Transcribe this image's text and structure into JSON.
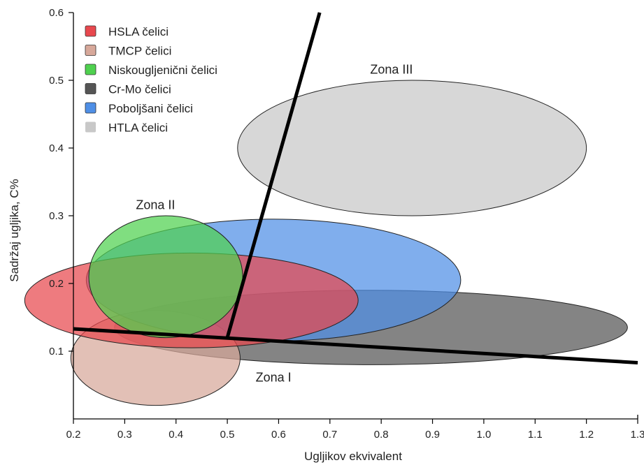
{
  "chart_data": {
    "type": "scatter",
    "title": "",
    "xlabel": "Ugljikov ekvivalent",
    "ylabel": "Sadržaj ugljika, C%",
    "xlim": [
      0.2,
      1.3
    ],
    "ylim": [
      0.0,
      0.6
    ],
    "x_ticks": [
      "0.2",
      "0.3",
      "0.4",
      "0.5",
      "0.6",
      "0.7",
      "0.8",
      "0.9",
      "1.0",
      "1.1",
      "1.2",
      "1.3"
    ],
    "y_ticks": [
      "0.1",
      "0.2",
      "0.3",
      "0.4",
      "0.5",
      "0.6"
    ],
    "grid": false,
    "legend_position": "top-left",
    "series": [
      {
        "name": "HTLA čelici",
        "color": "#c8c8c8",
        "center": [
          0.86,
          0.4
        ],
        "semi_axis_x": 0.34,
        "semi_axis_y": 0.1
      },
      {
        "name": "Cr-Mo čelici",
        "color": "#555555",
        "center": [
          0.78,
          0.135
        ],
        "semi_axis_x": 0.5,
        "semi_axis_y": 0.055
      },
      {
        "name": "TMCP čelici",
        "color": "#d7a89a",
        "center": [
          0.36,
          0.09
        ],
        "semi_axis_x": 0.165,
        "semi_axis_y": 0.07
      },
      {
        "name": "Poboljšani čelici",
        "color": "#4f8fe6",
        "center": [
          0.59,
          0.205
        ],
        "semi_axis_x": 0.365,
        "semi_axis_y": 0.09
      },
      {
        "name": "HSLA čelici",
        "color": "#e8484e",
        "center": [
          0.43,
          0.175
        ],
        "semi_axis_x": 0.325,
        "semi_axis_y": 0.07
      },
      {
        "name": "Niskougljenični čelici",
        "color": "#4fd14f",
        "center": [
          0.38,
          0.21
        ],
        "semi_axis_x": 0.15,
        "semi_axis_y": 0.09
      }
    ],
    "legend_order": [
      "HSLA čelici",
      "TMCP čelici",
      "Niskougljenični čelici",
      "Cr-Mo čelici",
      "Poboljšani čelici",
      "HTLA čelici"
    ],
    "boundary_lines": [
      {
        "from": [
          0.2,
          0.133
        ],
        "to": [
          1.3,
          0.083
        ]
      },
      {
        "from": [
          0.5,
          0.12
        ],
        "to": [
          0.68,
          0.6
        ]
      }
    ],
    "zone_labels": [
      {
        "text": "Zona I",
        "x": 0.59,
        "y": 0.055
      },
      {
        "text": "Zona II",
        "x": 0.36,
        "y": 0.31
      },
      {
        "text": "Zona III",
        "x": 0.82,
        "y": 0.51
      }
    ]
  }
}
